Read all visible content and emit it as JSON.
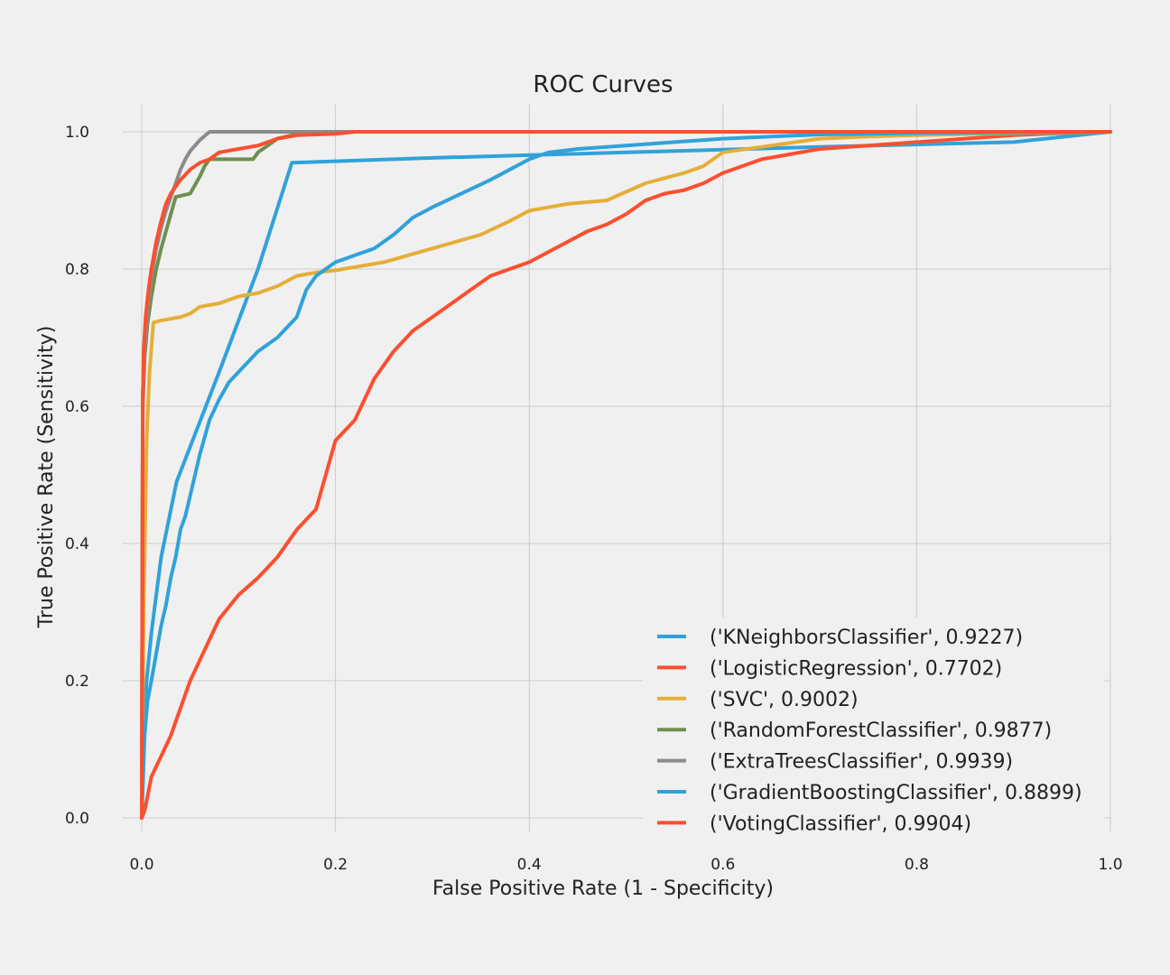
{
  "chart_data": {
    "type": "line",
    "title": "ROC Curves",
    "xlabel": "False Positive Rate (1 - Specificity)",
    "ylabel": "True Positive Rate (Sensitivity)",
    "xlim": [
      -0.02,
      1.0
    ],
    "ylim": [
      -0.02,
      1.04
    ],
    "xticks": [
      0.0,
      0.2,
      0.4,
      0.6,
      0.8,
      1.0
    ],
    "xtick_labels": [
      "0.0",
      "0.2",
      "0.4",
      "0.6",
      "0.8",
      "1.0"
    ],
    "yticks": [
      0.0,
      0.2,
      0.4,
      0.6,
      0.8,
      1.0
    ],
    "ytick_labels": [
      "0.0",
      "0.2",
      "0.4",
      "0.6",
      "0.8",
      "1.0"
    ],
    "grid": true,
    "legend": "lower-right",
    "series": [
      {
        "name": "('KNeighborsClassifier', 0.9227)",
        "color": "#30a2da",
        "x": [
          0.0,
          0.002,
          0.005,
          0.01,
          0.02,
          0.036,
          0.08,
          0.12,
          0.155,
          0.3,
          0.5,
          0.7,
          0.9,
          1.0
        ],
        "y": [
          0.0,
          0.12,
          0.2,
          0.27,
          0.38,
          0.49,
          0.65,
          0.8,
          0.955,
          0.962,
          0.97,
          0.978,
          0.985,
          1.0
        ]
      },
      {
        "name": "('LogisticRegression', 0.7702)",
        "color": "#fc4f30",
        "x": [
          0.0,
          0.003,
          0.01,
          0.02,
          0.03,
          0.04,
          0.05,
          0.06,
          0.07,
          0.08,
          0.1,
          0.12,
          0.14,
          0.16,
          0.18,
          0.2,
          0.22,
          0.24,
          0.26,
          0.28,
          0.3,
          0.32,
          0.34,
          0.36,
          0.38,
          0.4,
          0.42,
          0.44,
          0.46,
          0.48,
          0.5,
          0.52,
          0.54,
          0.56,
          0.58,
          0.6,
          0.62,
          0.64,
          0.66,
          0.7,
          0.75,
          0.8,
          0.85,
          0.9,
          0.95,
          1.0
        ],
        "y": [
          0.0,
          0.01,
          0.06,
          0.09,
          0.12,
          0.16,
          0.2,
          0.23,
          0.26,
          0.29,
          0.325,
          0.35,
          0.38,
          0.42,
          0.45,
          0.55,
          0.58,
          0.64,
          0.68,
          0.71,
          0.73,
          0.75,
          0.77,
          0.79,
          0.8,
          0.81,
          0.825,
          0.84,
          0.855,
          0.865,
          0.88,
          0.9,
          0.91,
          0.915,
          0.925,
          0.94,
          0.95,
          0.96,
          0.965,
          0.975,
          0.98,
          0.985,
          0.99,
          0.995,
          0.998,
          1.0
        ]
      },
      {
        "name": "('SVC', 0.9002)",
        "color": "#e5ae38",
        "x": [
          0.0,
          0.002,
          0.005,
          0.008,
          0.012,
          0.02,
          0.04,
          0.05,
          0.06,
          0.08,
          0.1,
          0.12,
          0.14,
          0.16,
          0.18,
          0.2,
          0.25,
          0.3,
          0.35,
          0.38,
          0.4,
          0.44,
          0.48,
          0.52,
          0.56,
          0.58,
          0.6,
          0.65,
          0.7,
          0.75,
          0.8,
          0.9,
          1.0
        ],
        "y": [
          0.0,
          0.3,
          0.55,
          0.65,
          0.722,
          0.725,
          0.73,
          0.735,
          0.745,
          0.75,
          0.76,
          0.765,
          0.775,
          0.79,
          0.795,
          0.798,
          0.81,
          0.83,
          0.85,
          0.87,
          0.885,
          0.895,
          0.9,
          0.925,
          0.94,
          0.95,
          0.97,
          0.98,
          0.99,
          0.993,
          0.995,
          0.998,
          1.0
        ]
      },
      {
        "name": "('RandomForestClassifier', 0.9877)",
        "color": "#6d904f",
        "x": [
          0.0,
          0.001,
          0.003,
          0.006,
          0.01,
          0.015,
          0.02,
          0.03,
          0.035,
          0.05,
          0.06,
          0.065,
          0.07,
          0.09,
          0.115,
          0.12,
          0.13,
          0.14,
          0.155,
          0.16,
          0.2,
          0.4,
          0.7,
          1.0
        ],
        "y": [
          0.0,
          0.6,
          0.67,
          0.72,
          0.76,
          0.8,
          0.83,
          0.88,
          0.905,
          0.91,
          0.935,
          0.95,
          0.96,
          0.96,
          0.96,
          0.97,
          0.98,
          0.99,
          0.995,
          1.0,
          1.0,
          1.0,
          1.0,
          1.0
        ]
      },
      {
        "name": "('ExtraTreesClassifier', 0.9939)",
        "color": "#8b8b8b",
        "x": [
          0.0,
          0.001,
          0.003,
          0.006,
          0.01,
          0.015,
          0.02,
          0.025,
          0.03,
          0.035,
          0.04,
          0.045,
          0.05,
          0.06,
          0.07,
          0.1,
          0.3,
          0.6,
          1.0
        ],
        "y": [
          0.0,
          0.62,
          0.68,
          0.74,
          0.79,
          0.83,
          0.86,
          0.885,
          0.905,
          0.925,
          0.945,
          0.96,
          0.972,
          0.988,
          1.0,
          1.0,
          1.0,
          1.0,
          1.0
        ]
      },
      {
        "name": "('GradientBoostingClassifier', 0.8899)",
        "color": "#30a2da",
        "x": [
          0.0,
          0.003,
          0.006,
          0.01,
          0.015,
          0.02,
          0.025,
          0.03,
          0.035,
          0.04,
          0.045,
          0.05,
          0.06,
          0.07,
          0.08,
          0.09,
          0.1,
          0.12,
          0.14,
          0.16,
          0.17,
          0.18,
          0.2,
          0.22,
          0.24,
          0.26,
          0.28,
          0.3,
          0.33,
          0.36,
          0.38,
          0.4,
          0.42,
          0.45,
          0.5,
          0.55,
          0.6,
          0.65,
          0.7,
          0.8,
          0.9,
          1.0
        ],
        "y": [
          0.0,
          0.12,
          0.17,
          0.2,
          0.24,
          0.28,
          0.31,
          0.35,
          0.38,
          0.42,
          0.44,
          0.47,
          0.53,
          0.58,
          0.61,
          0.635,
          0.65,
          0.68,
          0.7,
          0.73,
          0.77,
          0.79,
          0.81,
          0.82,
          0.83,
          0.85,
          0.875,
          0.89,
          0.91,
          0.93,
          0.945,
          0.96,
          0.97,
          0.975,
          0.98,
          0.985,
          0.99,
          0.993,
          0.996,
          0.998,
          0.999,
          1.0
        ]
      },
      {
        "name": "('VotingClassifier', 0.9904)",
        "color": "#fc4f30",
        "x": [
          0.0,
          0.001,
          0.002,
          0.004,
          0.007,
          0.01,
          0.015,
          0.02,
          0.025,
          0.03,
          0.04,
          0.05,
          0.06,
          0.07,
          0.08,
          0.1,
          0.12,
          0.14,
          0.16,
          0.2,
          0.22,
          0.4,
          0.7,
          1.0
        ],
        "y": [
          0.0,
          0.6,
          0.68,
          0.73,
          0.77,
          0.8,
          0.84,
          0.87,
          0.895,
          0.91,
          0.93,
          0.945,
          0.955,
          0.96,
          0.97,
          0.975,
          0.98,
          0.99,
          0.995,
          0.997,
          1.0,
          1.0,
          1.0,
          1.0
        ]
      }
    ]
  }
}
